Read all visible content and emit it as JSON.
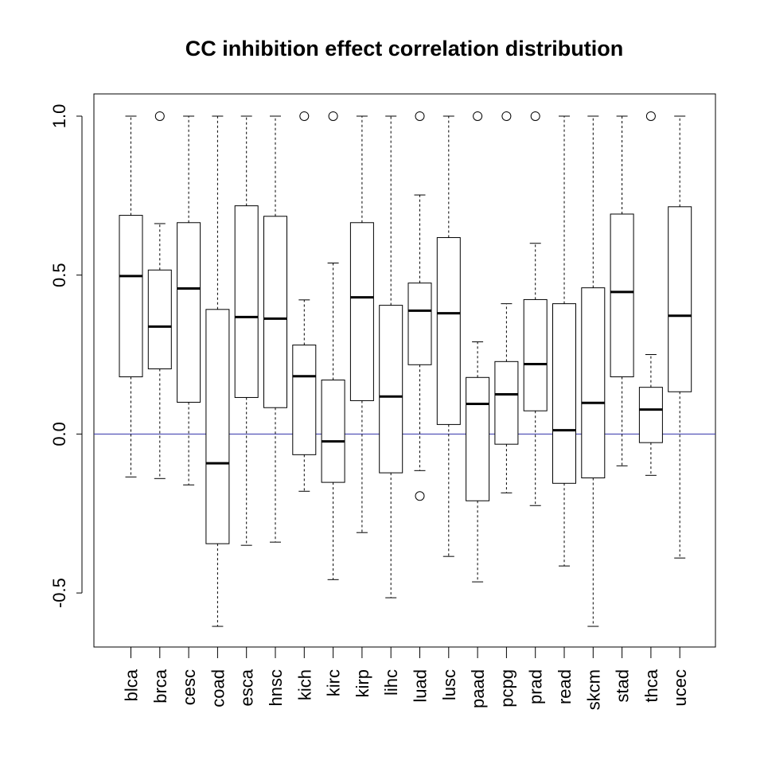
{
  "chart_data": {
    "type": "boxplot",
    "title": "CC inhibition effect correlation distribution",
    "xlabel": "",
    "ylabel": "",
    "ylim": [
      -0.67,
      1.07
    ],
    "yticks": [
      {
        "value": -0.5,
        "label": "-0.5"
      },
      {
        "value": 0.0,
        "label": "0.0"
      },
      {
        "value": 0.5,
        "label": "0.5"
      },
      {
        "value": 1.0,
        "label": "1.0"
      }
    ],
    "grid": false,
    "legend": "none",
    "reference_line": {
      "y": 0,
      "color": "#3333aa"
    },
    "categories": [
      "blca",
      "brca",
      "cesc",
      "coad",
      "esca",
      "hnsc",
      "kich",
      "kirc",
      "kirp",
      "lihc",
      "luad",
      "lusc",
      "paad",
      "pcpg",
      "prad",
      "read",
      "skcm",
      "stad",
      "thca",
      "ucec"
    ],
    "boxes": [
      {
        "name": "blca",
        "whisker_low": -0.135,
        "q1": 0.18,
        "median": 0.497,
        "q3": 0.688,
        "whisker_high": 1.0,
        "outliers": []
      },
      {
        "name": "brca",
        "whisker_low": -0.14,
        "q1": 0.205,
        "median": 0.338,
        "q3": 0.516,
        "whisker_high": 0.662,
        "outliers": [
          1.0
        ]
      },
      {
        "name": "cesc",
        "whisker_low": -0.16,
        "q1": 0.1,
        "median": 0.458,
        "q3": 0.665,
        "whisker_high": 1.0,
        "outliers": []
      },
      {
        "name": "coad",
        "whisker_low": -0.605,
        "q1": -0.345,
        "median": -0.092,
        "q3": 0.392,
        "whisker_high": 1.0,
        "outliers": []
      },
      {
        "name": "esca",
        "whisker_low": -0.35,
        "q1": 0.115,
        "median": 0.368,
        "q3": 0.718,
        "whisker_high": 1.0,
        "outliers": []
      },
      {
        "name": "hnsc",
        "whisker_low": -0.34,
        "q1": 0.083,
        "median": 0.363,
        "q3": 0.685,
        "whisker_high": 1.0,
        "outliers": []
      },
      {
        "name": "kich",
        "whisker_low": -0.18,
        "q1": -0.065,
        "median": 0.182,
        "q3": 0.28,
        "whisker_high": 0.422,
        "outliers": [
          1.0
        ]
      },
      {
        "name": "kirc",
        "whisker_low": -0.458,
        "q1": -0.152,
        "median": -0.023,
        "q3": 0.17,
        "whisker_high": 0.538,
        "outliers": [
          1.0
        ]
      },
      {
        "name": "kirp",
        "whisker_low": -0.31,
        "q1": 0.105,
        "median": 0.43,
        "q3": 0.665,
        "whisker_high": 1.0,
        "outliers": []
      },
      {
        "name": "lihc",
        "whisker_low": -0.515,
        "q1": -0.122,
        "median": 0.118,
        "q3": 0.405,
        "whisker_high": 1.0,
        "outliers": []
      },
      {
        "name": "luad",
        "whisker_low": -0.115,
        "q1": 0.218,
        "median": 0.388,
        "q3": 0.475,
        "whisker_high": 0.752,
        "outliers": [
          1.0,
          -0.195
        ]
      },
      {
        "name": "lusc",
        "whisker_low": -0.385,
        "q1": 0.03,
        "median": 0.38,
        "q3": 0.618,
        "whisker_high": 1.0,
        "outliers": []
      },
      {
        "name": "paad",
        "whisker_low": -0.465,
        "q1": -0.21,
        "median": 0.095,
        "q3": 0.178,
        "whisker_high": 0.29,
        "outliers": [
          1.0
        ]
      },
      {
        "name": "pcpg",
        "whisker_low": -0.185,
        "q1": -0.032,
        "median": 0.125,
        "q3": 0.228,
        "whisker_high": 0.41,
        "outliers": [
          1.0
        ]
      },
      {
        "name": "prad",
        "whisker_low": -0.225,
        "q1": 0.073,
        "median": 0.22,
        "q3": 0.423,
        "whisker_high": 0.6,
        "outliers": [
          1.0
        ]
      },
      {
        "name": "read",
        "whisker_low": -0.415,
        "q1": -0.155,
        "median": 0.012,
        "q3": 0.41,
        "whisker_high": 1.0,
        "outliers": []
      },
      {
        "name": "skcm",
        "whisker_low": -0.605,
        "q1": -0.138,
        "median": 0.098,
        "q3": 0.46,
        "whisker_high": 1.0,
        "outliers": []
      },
      {
        "name": "stad",
        "whisker_low": -0.1,
        "q1": 0.18,
        "median": 0.447,
        "q3": 0.692,
        "whisker_high": 1.0,
        "outliers": []
      },
      {
        "name": "thca",
        "whisker_low": -0.13,
        "q1": -0.027,
        "median": 0.077,
        "q3": 0.147,
        "whisker_high": 0.25,
        "outliers": [
          1.0
        ]
      },
      {
        "name": "ucec",
        "whisker_low": -0.39,
        "q1": 0.133,
        "median": 0.372,
        "q3": 0.715,
        "whisker_high": 1.0,
        "outliers": []
      }
    ]
  }
}
